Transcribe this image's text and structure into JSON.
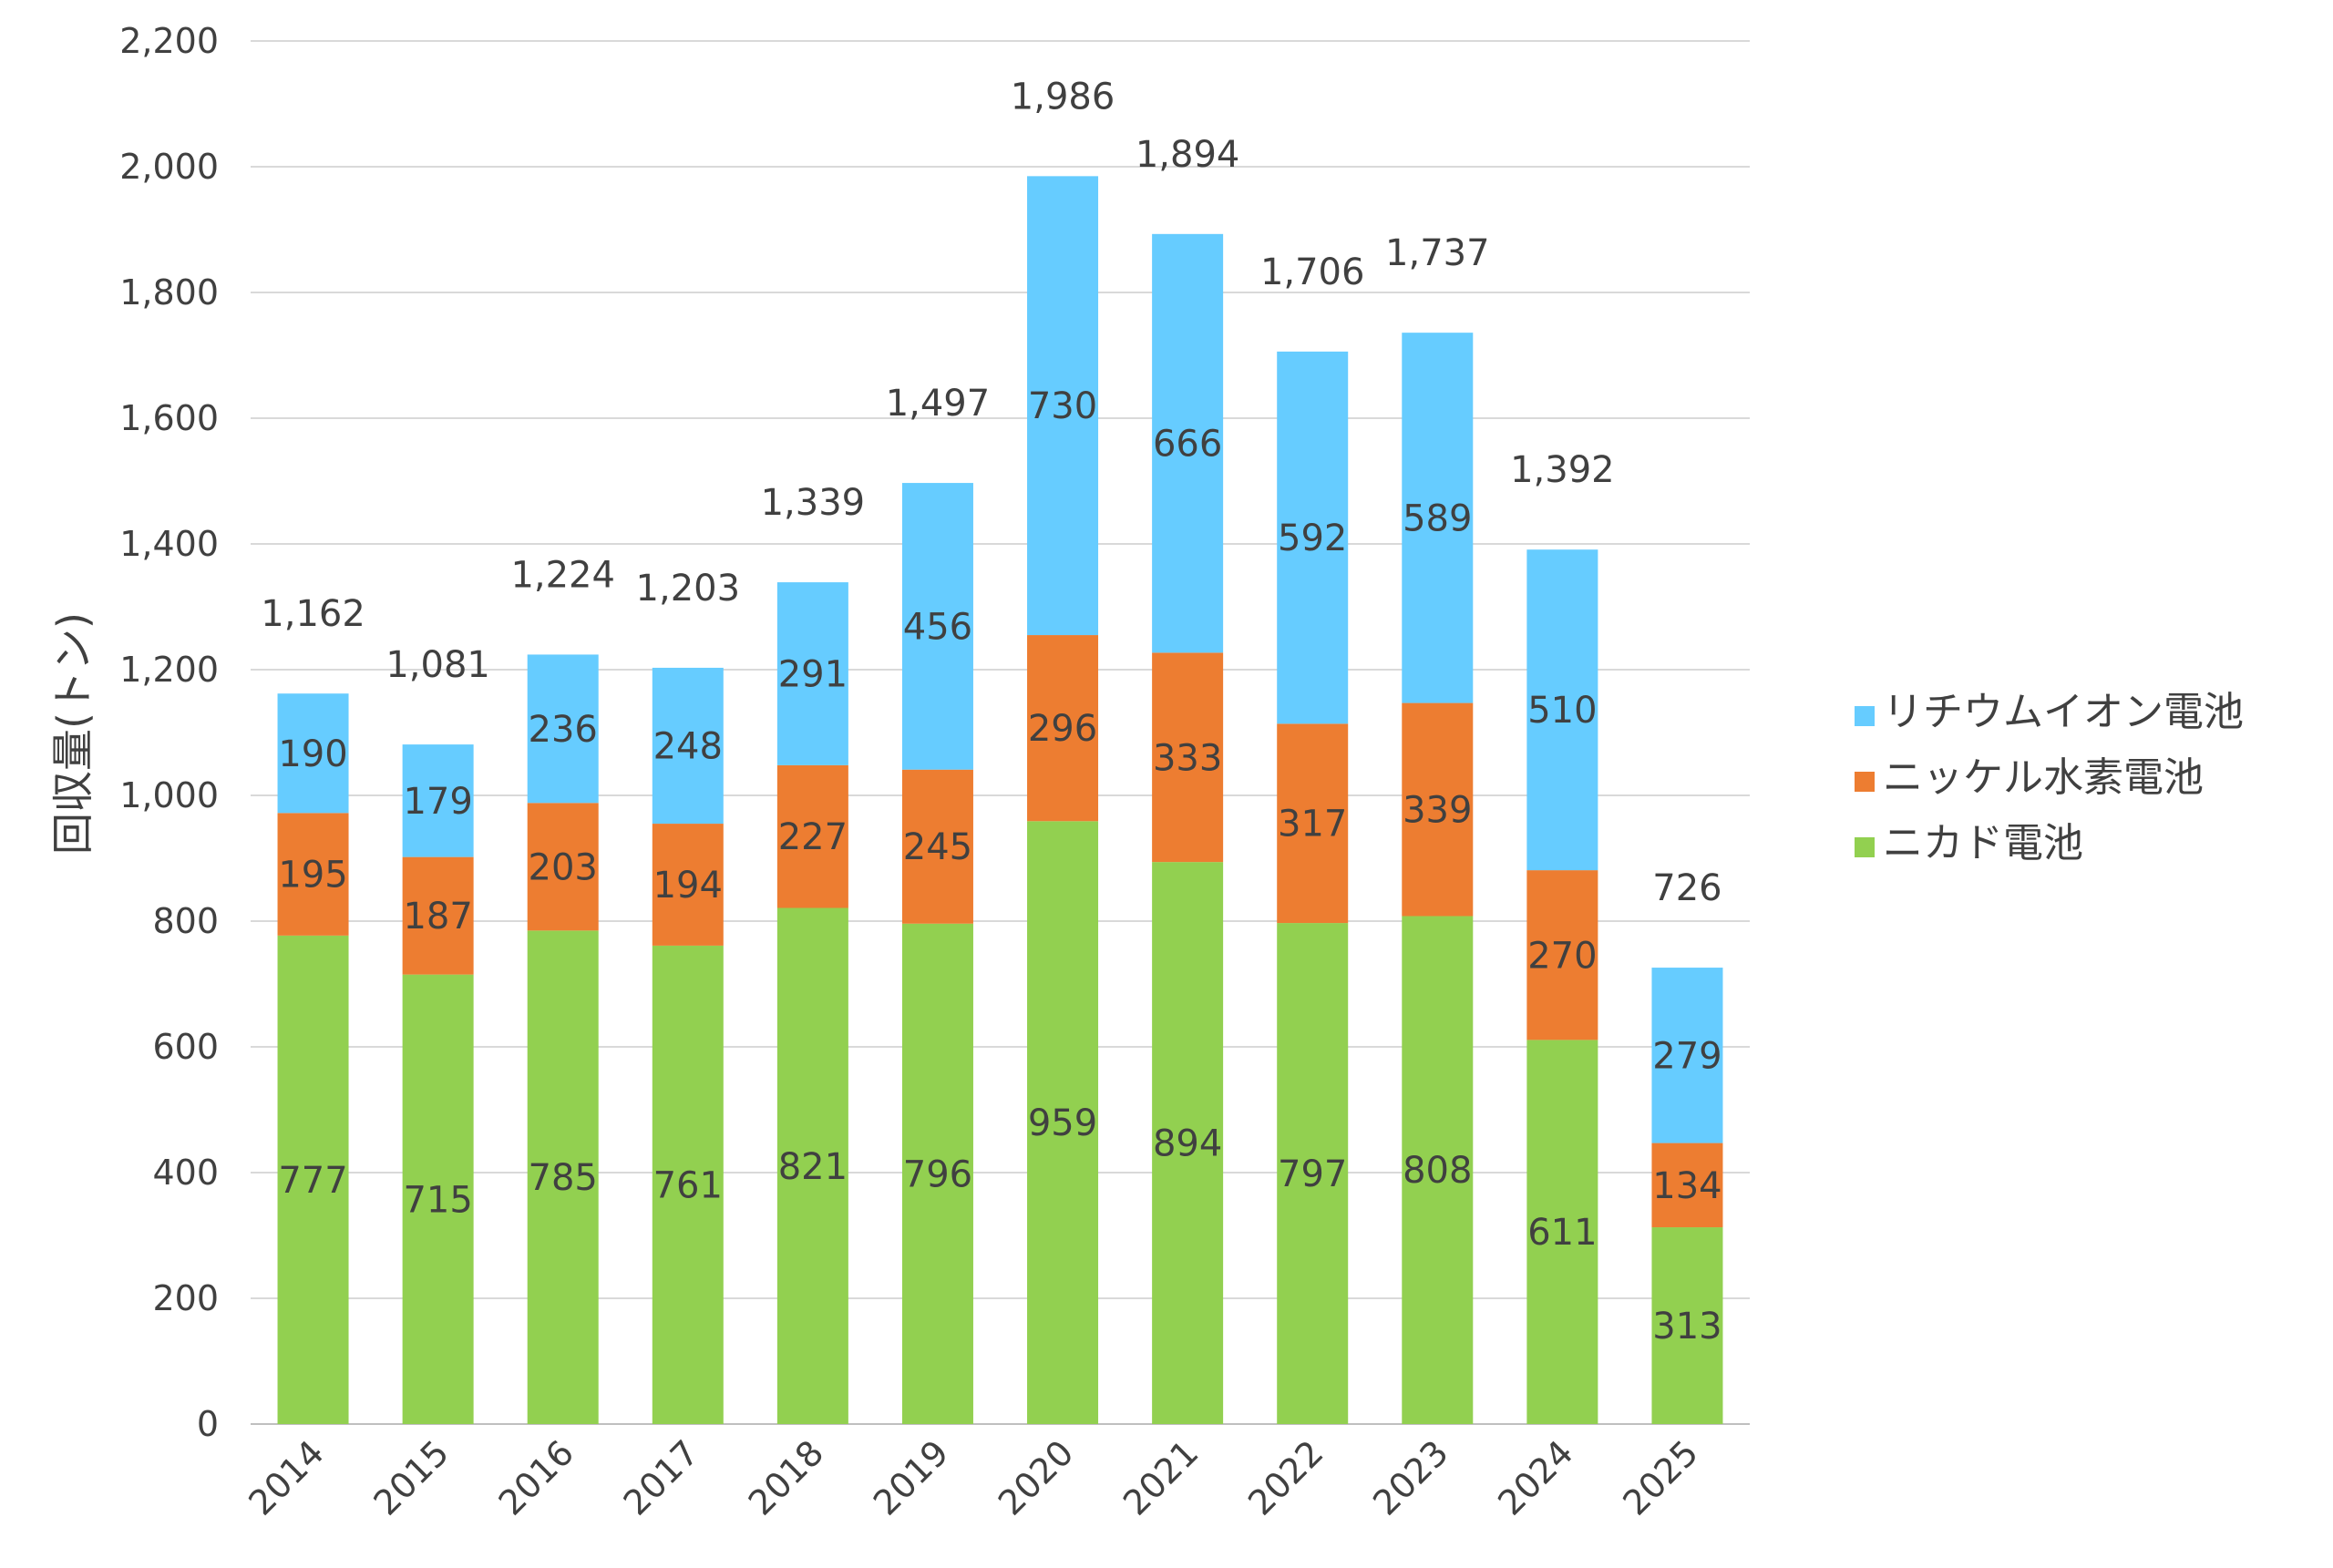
{
  "chart_data": {
    "type": "bar",
    "stacked": true,
    "categories": [
      "2014",
      "2015",
      "2016",
      "2017",
      "2018",
      "2019",
      "2020",
      "2021",
      "2022",
      "2023",
      "2024",
      "2025"
    ],
    "series": [
      {
        "name": "ニカド電池",
        "color": "#92d050",
        "values": [
          777,
          715,
          785,
          761,
          821,
          796,
          959,
          894,
          797,
          808,
          611,
          313
        ]
      },
      {
        "name": "ニッケル水素電池",
        "color": "#ed7d31",
        "values": [
          195,
          187,
          203,
          194,
          227,
          245,
          296,
          333,
          317,
          339,
          270,
          134
        ]
      },
      {
        "name": "リチウムイオン電池",
        "color": "#66ccff",
        "values": [
          190,
          179,
          236,
          248,
          291,
          456,
          730,
          666,
          592,
          589,
          510,
          279
        ]
      }
    ],
    "totals": [
      "1,162",
      "1,081",
      "1,224",
      "1,203",
      "1,339",
      "1,497",
      "1,986",
      "1,894",
      "1,706",
      "1,737",
      "1,392",
      "726"
    ],
    "title": "",
    "xlabel": "",
    "ylabel": "回収量(トン)",
    "ylim": [
      0,
      2200
    ],
    "yticks": [
      0,
      200,
      400,
      600,
      800,
      1000,
      1200,
      1400,
      1600,
      1800,
      2000,
      2200
    ],
    "ytick_labels": [
      "0",
      "200",
      "400",
      "600",
      "800",
      "1,000",
      "1,200",
      "1,400",
      "1,600",
      "1,800",
      "2,000",
      "2,200"
    ],
    "grid": true,
    "legend_position": "right",
    "legend_order": [
      "リチウムイオン電池",
      "ニッケル水素電池",
      "ニカド電池"
    ]
  }
}
